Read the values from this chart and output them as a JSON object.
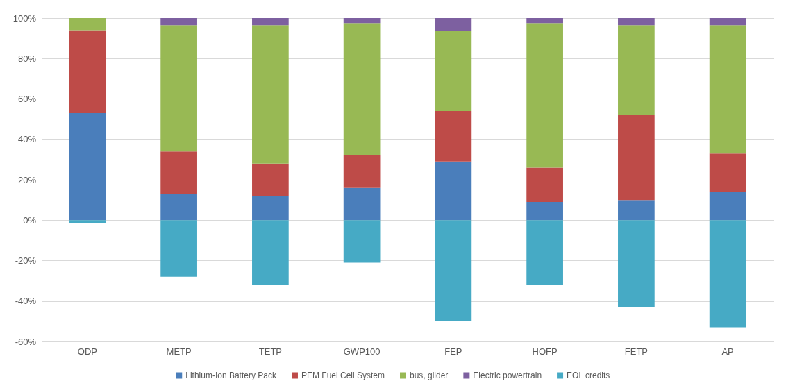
{
  "chart_data": {
    "type": "bar",
    "stacked": true,
    "categories": [
      "ODP",
      "METP",
      "TETP",
      "GWP100",
      "FEP",
      "HOFP",
      "FETP",
      "AP"
    ],
    "series": [
      {
        "name": "Lithium-Ion Battery Pack",
        "color": "#4a7ebb",
        "values": [
          53,
          13,
          12,
          16,
          29,
          9,
          10,
          14
        ]
      },
      {
        "name": "PEM Fuel Cell System",
        "color": "#be4b48",
        "values": [
          41,
          21,
          16,
          16,
          25,
          17,
          42,
          19
        ]
      },
      {
        "name": "bus, glider",
        "color": "#98b954",
        "values": [
          6,
          62.5,
          68.5,
          65.5,
          39.5,
          71.5,
          44.5,
          63.5
        ]
      },
      {
        "name": "Electric powertrain",
        "color": "#7d60a0",
        "values": [
          0.3,
          3.5,
          3.5,
          2.5,
          6.5,
          2.5,
          3.5,
          3.5
        ]
      },
      {
        "name": "EOL credits",
        "color": "#46aac5",
        "values": [
          -1.5,
          -28,
          -32,
          -21,
          -50,
          -32,
          -43,
          -53
        ]
      }
    ],
    "ylim": [
      -60,
      100
    ],
    "yticks": [
      {
        "value": -60,
        "label": "-60%"
      },
      {
        "value": -40,
        "label": "-40%"
      },
      {
        "value": -20,
        "label": "-20%"
      },
      {
        "value": 0,
        "label": "0%"
      },
      {
        "value": 20,
        "label": "20%"
      },
      {
        "value": 40,
        "label": "40%"
      },
      {
        "value": 60,
        "label": "60%"
      },
      {
        "value": 80,
        "label": "80%"
      },
      {
        "value": 100,
        "label": "100%"
      }
    ],
    "grid": "y",
    "legend": "bottom"
  }
}
